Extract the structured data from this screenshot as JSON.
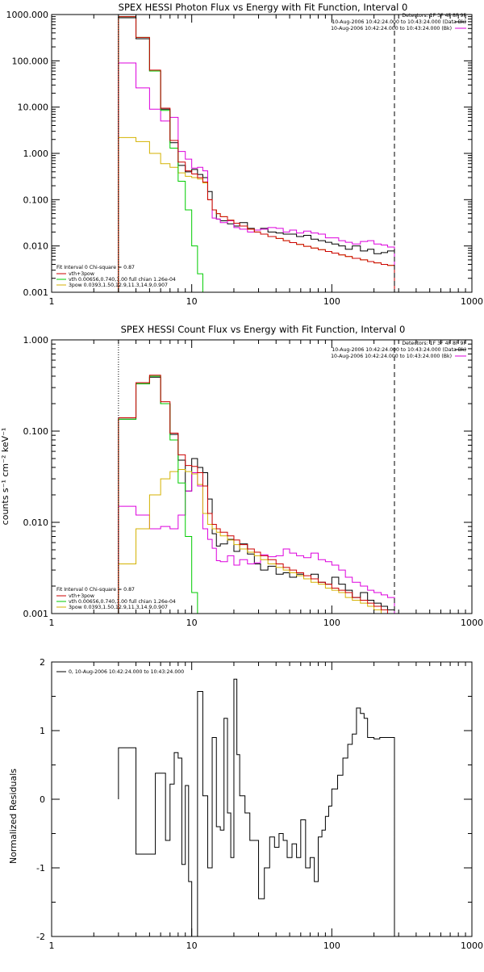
{
  "chart_data": [
    {
      "type": "line",
      "title": "SPEX HESSI Photon Flux vs Energy with Fit Function, Interval 0",
      "xscale": "log",
      "yscale": "log",
      "xlim": [
        1,
        1000
      ],
      "ylim": [
        0.001,
        1000
      ],
      "xticks": [
        "1",
        "10",
        "100",
        "1000"
      ],
      "yticks": [
        "0.001",
        "0.010",
        "0.100",
        "1.000",
        "10.000",
        "100.000",
        "1000.000"
      ],
      "header_lines": [
        "Detectors: 1F 3F 4F 8F 9F",
        "10-Aug-2006 10:42:24.000 to 10:43:24.000 (Data-Bk)",
        "10-Aug-2006 10:42:24.000 to 10:43:24.000 (Bk)"
      ],
      "legend": [
        "Fit Interval 0   Chi-square = 0.87",
        "vth+3pow",
        "vth 0.00656,0.740,1.00   full chian 1.26e-04",
        "3pow 0.0393,1.50,12.9,11.3,14.9,0.907"
      ],
      "edges": [
        3,
        4,
        5,
        6,
        7,
        8,
        9,
        10,
        11,
        12,
        13,
        14,
        15,
        16,
        18,
        20,
        22,
        25,
        28,
        31,
        35,
        40,
        45,
        50,
        56,
        63,
        71,
        80,
        90,
        100,
        112,
        125,
        140,
        160,
        180,
        200,
        225,
        250,
        280
      ],
      "series": [
        {
          "name": "Data-Bk",
          "color": "#000000",
          "values": [
            850,
            300,
            60,
            9,
            1.7,
            0.55,
            0.4,
            0.45,
            0.35,
            0.3,
            0.15,
            0.06,
            0.038,
            0.035,
            0.03,
            0.027,
            0.032,
            0.024,
            0.022,
            0.024,
            0.02,
            0.019,
            0.018,
            0.018,
            0.016,
            0.017,
            0.014,
            0.013,
            0.012,
            0.011,
            0.01,
            0.0085,
            0.01,
            0.0078,
            0.0085,
            0.0068,
            0.0072,
            0.0078
          ]
        },
        {
          "name": "Bk",
          "color": "#dd00dd",
          "values": [
            90,
            26,
            9,
            5,
            6,
            1.1,
            0.75,
            0.48,
            0.5,
            0.42,
            0.1,
            0.04,
            0.038,
            0.032,
            0.035,
            0.025,
            0.023,
            0.02,
            0.022,
            0.023,
            0.025,
            0.024,
            0.02,
            0.022,
            0.019,
            0.021,
            0.019,
            0.018,
            0.015,
            0.015,
            0.013,
            0.012,
            0.011,
            0.0125,
            0.013,
            0.011,
            0.0105,
            0.0095
          ]
        },
        {
          "name": "vth+3pow",
          "color": "#cc0000",
          "values": [
            900,
            320,
            63,
            9.5,
            1.9,
            0.65,
            0.42,
            0.36,
            0.3,
            0.24,
            0.1,
            0.06,
            0.05,
            0.043,
            0.036,
            0.031,
            0.027,
            0.023,
            0.02,
            0.018,
            0.016,
            0.0145,
            0.013,
            0.0118,
            0.0108,
            0.0098,
            0.009,
            0.0083,
            0.0076,
            0.007,
            0.0064,
            0.0059,
            0.0054,
            0.005,
            0.0046,
            0.0043,
            0.004,
            0.0038
          ]
        },
        {
          "name": "vth",
          "color": "#00cc00",
          "values": [
            900,
            320,
            60,
            8.5,
            1.3,
            0.25,
            0.06,
            0.01,
            0.0025,
            0.0006
          ]
        },
        {
          "name": "3pow",
          "color": "#d4b200",
          "values": [
            2.2,
            1.8,
            1.0,
            0.6,
            0.5,
            0.38,
            0.32,
            0.3,
            0.28,
            0.23,
            0.1,
            0.06,
            0.05,
            0.043,
            0.036,
            0.031,
            0.027,
            0.023,
            0.02,
            0.018,
            0.016,
            0.0145,
            0.013,
            0.0118,
            0.0108,
            0.0098,
            0.009,
            0.0083,
            0.0076,
            0.007,
            0.0064,
            0.0059,
            0.0054,
            0.005,
            0.0046,
            0.0043,
            0.004,
            0.0038
          ]
        }
      ]
    },
    {
      "type": "line",
      "title": "SPEX HESSI Count Flux vs Energy with Fit Function, Interval 0",
      "ylabel": "counts s⁻¹ cm⁻² keV⁻¹",
      "xscale": "log",
      "yscale": "log",
      "xlim": [
        1,
        1000
      ],
      "ylim": [
        0.001,
        1
      ],
      "xticks": [
        "1",
        "10",
        "100",
        "1000"
      ],
      "yticks": [
        "0.001",
        "0.010",
        "0.100",
        "1.000"
      ],
      "header_lines": [
        "Detectors: 1F 3F 4F 8F 9F",
        "10-Aug-2006 10:42:24.000 to 10:43:24.000 (Data-Bk)",
        "10-Aug-2006 10:42:24.000 to 10:43:24.000 (Bk)"
      ],
      "legend": [
        "Fit Interval 0   Chi-square = 0.87",
        "vth+3pow",
        "vth 0.00656,0.740,1.00   full chian 1.26e-04",
        "3pow 0.0393,1.50,12.9,11.3,14.9,0.907"
      ],
      "edges": [
        3,
        4,
        5,
        6,
        7,
        8,
        9,
        10,
        11,
        12,
        13,
        14,
        15,
        16,
        18,
        20,
        22,
        25,
        28,
        31,
        35,
        40,
        45,
        50,
        56,
        63,
        71,
        80,
        90,
        100,
        112,
        125,
        140,
        160,
        180,
        200,
        225,
        250,
        280
      ],
      "series": [
        {
          "name": "Data-Bk",
          "color": "#000000",
          "values": [
            0.135,
            0.33,
            0.39,
            0.2,
            0.092,
            0.048,
            0.022,
            0.05,
            0.04,
            0.035,
            0.018,
            0.0075,
            0.0055,
            0.0058,
            0.0065,
            0.0048,
            0.0058,
            0.0045,
            0.0035,
            0.003,
            0.0033,
            0.0027,
            0.0028,
            0.0025,
            0.0027,
            0.0024,
            0.0027,
            0.0022,
            0.0021,
            0.0025,
            0.0021,
            0.0018,
            0.0015,
            0.0017,
            0.0014,
            0.0013,
            0.0012,
            0.0011
          ]
        },
        {
          "name": "Bk",
          "color": "#dd00dd",
          "values": [
            0.015,
            0.012,
            0.0085,
            0.009,
            0.0085,
            0.012,
            0.022,
            0.035,
            0.025,
            0.0085,
            0.0065,
            0.0052,
            0.0038,
            0.0037,
            0.0043,
            0.0034,
            0.0039,
            0.0035,
            0.0036,
            0.0044,
            0.0042,
            0.0043,
            0.0051,
            0.0046,
            0.0043,
            0.0041,
            0.0046,
            0.0039,
            0.0037,
            0.0034,
            0.003,
            0.0025,
            0.0022,
            0.002,
            0.0018,
            0.0017,
            0.0016,
            0.0015
          ]
        },
        {
          "name": "vth+3pow",
          "color": "#cc0000",
          "values": [
            0.14,
            0.34,
            0.41,
            0.21,
            0.095,
            0.055,
            0.042,
            0.041,
            0.035,
            0.025,
            0.0125,
            0.0095,
            0.0085,
            0.0078,
            0.0071,
            0.0064,
            0.0057,
            0.0051,
            0.0047,
            0.0043,
            0.0039,
            0.0035,
            0.0032,
            0.003,
            0.0028,
            0.0026,
            0.0024,
            0.0022,
            0.0021,
            0.0019,
            0.0018,
            0.0017,
            0.0015,
            0.0014,
            0.0013,
            0.0012,
            0.0011,
            0.001
          ]
        },
        {
          "name": "vth",
          "color": "#00cc00",
          "values": [
            0.135,
            0.33,
            0.4,
            0.2,
            0.08,
            0.027,
            0.007,
            0.0017,
            0.0004
          ]
        },
        {
          "name": "3pow",
          "color": "#d4b200",
          "values": [
            0.0035,
            0.0085,
            0.02,
            0.03,
            0.036,
            0.038,
            0.036,
            0.034,
            0.026,
            0.0125,
            0.0095,
            0.0085,
            0.0078,
            0.0071,
            0.0064,
            0.0057,
            0.0051,
            0.0047,
            0.0043,
            0.0039,
            0.0035,
            0.0032,
            0.003,
            0.0028,
            0.0026,
            0.0024,
            0.0022,
            0.0021,
            0.0019,
            0.0018,
            0.0017,
            0.0015,
            0.0014,
            0.0013,
            0.0012,
            0.0011,
            0.001,
            0.0009
          ]
        }
      ]
    },
    {
      "type": "line",
      "title": "",
      "ylabel": "Normalized Residuals",
      "xscale": "log",
      "yscale": "linear",
      "xlim": [
        1,
        1000
      ],
      "ylim": [
        -2,
        2
      ],
      "xticks": [
        "1",
        "10",
        "100",
        "1000"
      ],
      "yticks": [
        "-2",
        "-1",
        "0",
        "1",
        "2"
      ],
      "legend": [
        "0, 10-Aug-2006 10:42:24.000 to 10:43:24.000"
      ],
      "edges": [
        3,
        4,
        5,
        5.5,
        6,
        6.5,
        7,
        7.5,
        8,
        8.5,
        9,
        9.5,
        10,
        11,
        12,
        13,
        14,
        15,
        16,
        17,
        18,
        19,
        20,
        21,
        22,
        24,
        26,
        28,
        30,
        33,
        36,
        39,
        42,
        45,
        48,
        52,
        56,
        60,
        65,
        70,
        75,
        80,
        85,
        90,
        95,
        100,
        110,
        120,
        130,
        140,
        150,
        160,
        170,
        180,
        190,
        200,
        220,
        240,
        260,
        280
      ],
      "series": [
        {
          "name": "0, 10-Aug-2006 10:42:24.000 to 10:43:24.000",
          "color": "#000000",
          "values": [
            0.75,
            -0.8,
            -0.8,
            0.38,
            0.38,
            -0.6,
            0.22,
            0.68,
            0.6,
            -0.95,
            0.2,
            -1.2,
            -2.05,
            1.57,
            0.05,
            -1.0,
            0.9,
            -0.4,
            -0.45,
            1.18,
            -0.2,
            -0.85,
            1.75,
            0.65,
            0.05,
            -0.2,
            -0.6,
            -0.6,
            -1.45,
            -1.0,
            -0.55,
            -0.7,
            -0.5,
            -0.6,
            -0.85,
            -0.65,
            -0.85,
            -0.3,
            -1.0,
            -0.85,
            -1.2,
            -0.55,
            -0.45,
            -0.25,
            -0.1,
            0.15,
            0.35,
            0.6,
            0.8,
            0.95,
            1.33,
            1.25,
            1.18,
            0.9,
            0.9,
            0.88,
            0.9,
            0.9,
            0.9
          ]
        }
      ]
    }
  ]
}
